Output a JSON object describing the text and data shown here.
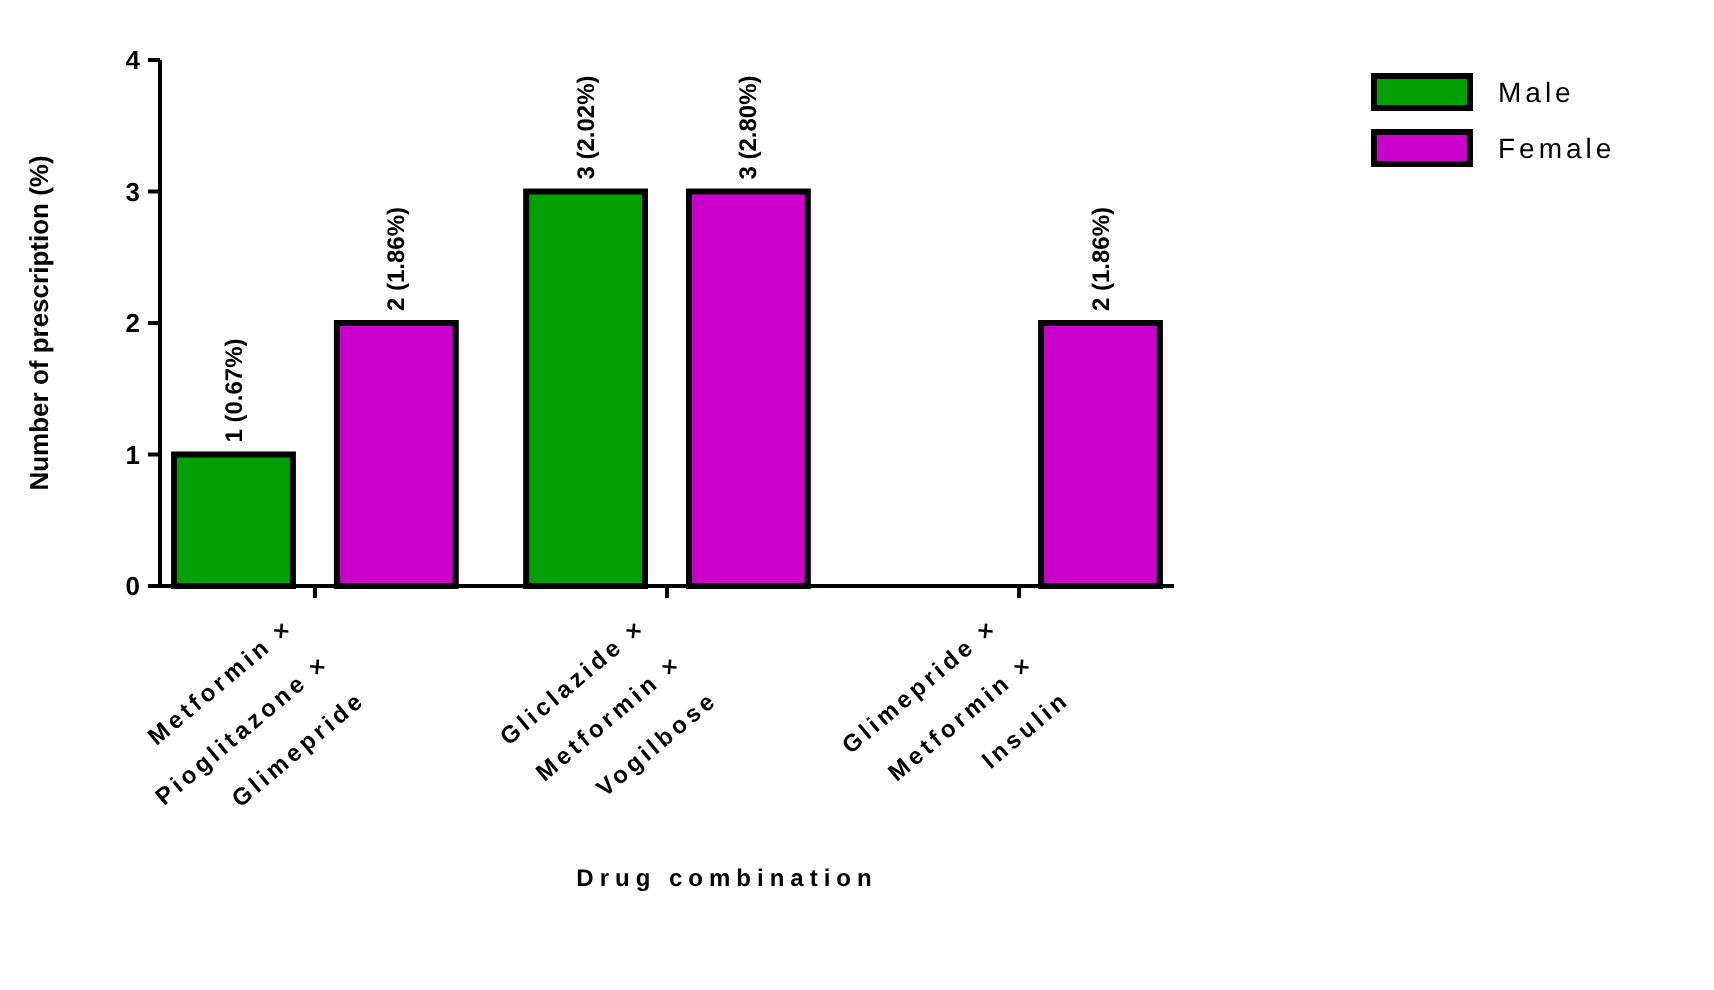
{
  "chart_data": {
    "type": "bar",
    "xlabel": "Drug combination",
    "ylabel": "Number of prescription (%)",
    "categories": [
      "Metformin ×\nPioglitazone ×\nGlimepride",
      "Gliclazide ×\nMetformin ×\nVogilbose",
      "Glimepride ×\nMetformin ×\nInsulin"
    ],
    "series": [
      {
        "name": "Male",
        "color": "#00a000",
        "values": [
          1,
          3,
          null
        ],
        "value_labels": [
          "1 (0.67%)",
          "3 (2.02%)",
          null
        ]
      },
      {
        "name": "Female",
        "color": "#cc00cc",
        "values": [
          2,
          3,
          2
        ],
        "value_labels": [
          "2 (1.86%)",
          "3 (2.80%)",
          "2 (1.86%)"
        ]
      }
    ],
    "ylim": [
      0,
      4
    ],
    "yticks": [
      0,
      1,
      2,
      3,
      4
    ],
    "grid": false,
    "legend": "top right"
  }
}
